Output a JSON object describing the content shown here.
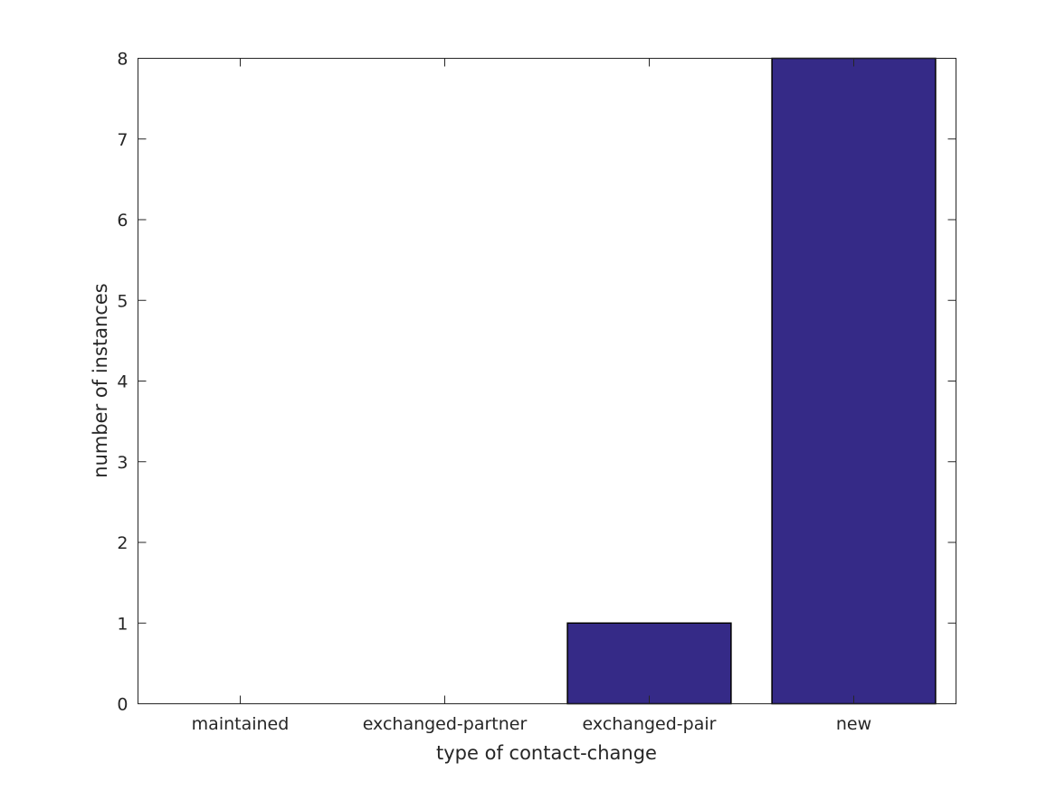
{
  "chart_data": {
    "type": "bar",
    "title": "",
    "xlabel": "type of contact-change",
    "ylabel": "number of instances",
    "categories": [
      "maintained",
      "exchanged-partner",
      "exchanged-pair",
      "new"
    ],
    "values": [
      0,
      0,
      1,
      8
    ],
    "ylim": [
      0,
      8
    ],
    "yticks": [
      0,
      1,
      2,
      3,
      4,
      5,
      6,
      7,
      8
    ],
    "grid": false,
    "legend": "none",
    "bar_color": "#352a87",
    "edge_color": "#000000",
    "axis_color": "#262626"
  }
}
